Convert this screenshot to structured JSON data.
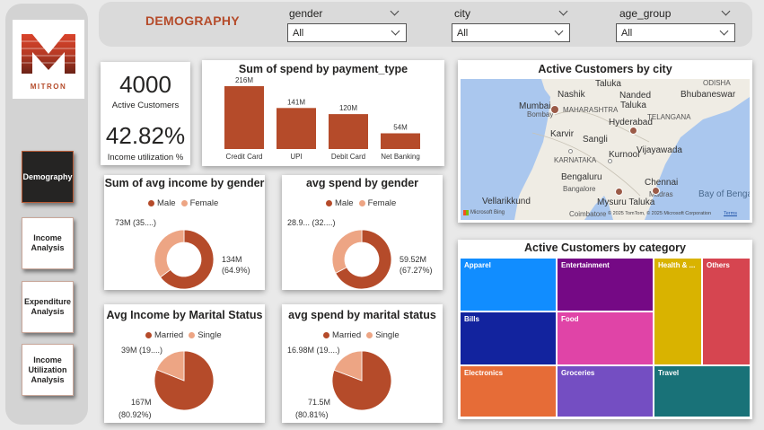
{
  "brand": {
    "logo_text": "MITRON"
  },
  "nav": [
    {
      "label": "Demography",
      "active": true
    },
    {
      "label": "Income Analysis",
      "active": false
    },
    {
      "label": "Expenditure Analysis",
      "active": false
    },
    {
      "label": "Income Utilization Analysis",
      "active": false
    }
  ],
  "header": {
    "title": "DEMOGRAPHY",
    "slicers": [
      {
        "label": "gender",
        "value": "All"
      },
      {
        "label": "city",
        "value": "All"
      },
      {
        "label": "age_group",
        "value": "All"
      }
    ]
  },
  "kpi": {
    "customers_value": "4000",
    "customers_label": "Active Customers",
    "utilization_value": "42.82%",
    "utilization_label": "Income utilization %"
  },
  "map": {
    "title": "Active Customers by city",
    "labels": [
      "Talukа",
      "Nashik",
      "Nanded",
      "Mumbai",
      "Bombay",
      "Taluka",
      "MAHARASHTRA",
      "Hyderabad",
      "TELANGANA",
      "Karvir",
      "Sangli",
      "Vijayawada",
      "Bengaluru",
      "Bangalore",
      "Chennai",
      "Madras",
      "Vellarikkund",
      "Mysuru Taluka",
      "Coimbatore",
      "Bhubaneswar",
      "ODISHA",
      "KARNATAKA",
      "Kurnool",
      "Bay of Bengal"
    ],
    "attribution": "© 2025 TomTom, © 2025 Microsoft Corporation",
    "terms": "Terms",
    "bing": "Microsoft Bing"
  },
  "payment_chart": {
    "title": "Sum of spend by payment_type",
    "data_labels": [
      "216M",
      "141M",
      "120M",
      "54M"
    ]
  },
  "income_gender": {
    "title": "Sum of avg income by gender",
    "legend": [
      "Male",
      "Female"
    ],
    "label_female": "73M (35....)",
    "label_male_1": "134M",
    "label_male_2": "(64.9%)"
  },
  "spend_gender": {
    "title": "avg spend by gender",
    "legend": [
      "Male",
      "Female"
    ],
    "label_female": "28.9... (32....)",
    "label_male_1": "59.52M",
    "label_male_2": "(67.27%)"
  },
  "income_marital": {
    "title": "Avg Income by Marital Status",
    "legend": [
      "Married",
      "Single"
    ],
    "label_single": "39M (19....)",
    "label_married_1": "167M",
    "label_married_2": "(80.92%)"
  },
  "spend_marital": {
    "title": "avg spend by marital status",
    "legend": [
      "Married",
      "Single"
    ],
    "label_single": "16.98M (19....)",
    "label_married_1": "71.5M",
    "label_married_2": "(80.81%)"
  },
  "category": {
    "title": "Active Customers by category",
    "tiles": [
      "Apparel",
      "Entertainment",
      "Health & ...",
      "Others",
      "Bills",
      "Food",
      "Electronics",
      "Groceries",
      "Travel"
    ]
  },
  "colors": {
    "male": "#b54b2a",
    "female": "#eda584",
    "accent": "#b54b2a"
  },
  "chart_data": [
    {
      "type": "bar",
      "title": "Sum of spend by payment_type",
      "categories": [
        "Credit Card",
        "UPI",
        "Debit Card",
        "Net Banking"
      ],
      "values": [
        216,
        141,
        120,
        54
      ],
      "unit": "M"
    },
    {
      "type": "pie",
      "title": "Sum of avg income by gender",
      "categories": [
        "Male",
        "Female"
      ],
      "values": [
        134,
        73
      ],
      "percent": [
        64.9,
        35.1
      ]
    },
    {
      "type": "pie",
      "title": "avg spend by gender",
      "categories": [
        "Male",
        "Female"
      ],
      "values": [
        59.52,
        28.9
      ],
      "percent": [
        67.27,
        32.73
      ]
    },
    {
      "type": "pie",
      "title": "Avg Income by Marital Status",
      "categories": [
        "Married",
        "Single"
      ],
      "values": [
        167,
        39
      ],
      "percent": [
        80.92,
        19.08
      ]
    },
    {
      "type": "pie",
      "title": "avg spend by marital status",
      "categories": [
        "Married",
        "Single"
      ],
      "values": [
        71.5,
        16.98
      ],
      "percent": [
        80.81,
        19.19
      ]
    }
  ]
}
